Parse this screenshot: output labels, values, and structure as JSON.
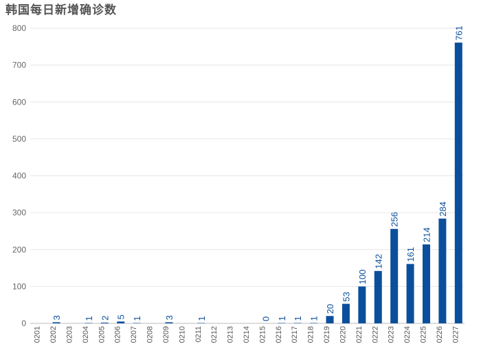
{
  "chart_data": {
    "type": "bar",
    "title": "韩国每日新增确诊数",
    "xlabel": "",
    "ylabel": "",
    "ylim": [
      0,
      800
    ],
    "yticks": [
      0,
      100,
      200,
      300,
      400,
      500,
      600,
      700,
      800
    ],
    "grid": true,
    "bar_color": "#0b4f9c",
    "categories": [
      "0201",
      "0202",
      "0203",
      "0204",
      "0205",
      "0206",
      "0207",
      "0208",
      "0209",
      "0210",
      "0211",
      "0212",
      "0213",
      "0214",
      "0215",
      "0216",
      "0217",
      "0218",
      "0219",
      "0220",
      "0221",
      "0222",
      "0223",
      "0224",
      "0225",
      "0226",
      "0227"
    ],
    "values": [
      null,
      3,
      null,
      1,
      2,
      5,
      1,
      null,
      3,
      null,
      1,
      null,
      null,
      null,
      0,
      1,
      1,
      1,
      20,
      53,
      100,
      142,
      256,
      161,
      214,
      284,
      761
    ],
    "data_labels": [
      "",
      "3",
      "",
      "1",
      "2",
      "5",
      "1",
      "",
      "3",
      "",
      "1",
      "",
      "",
      "",
      "0",
      "1",
      "1",
      "1",
      "20",
      "53",
      "100",
      "142",
      "256",
      "161",
      "214",
      "284",
      "761"
    ]
  }
}
